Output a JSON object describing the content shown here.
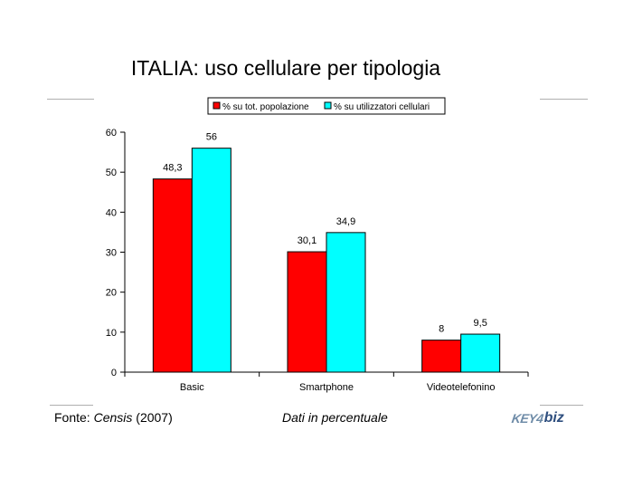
{
  "page": {
    "title": "ITALIA: uso cellulare per tipologia",
    "source_prefix": "Fonte: ",
    "source_name": "Censis",
    "source_year": " (2007)",
    "note": "Dati in percentuale",
    "logo_key": "KEY4",
    "logo_biz": "biz"
  },
  "chart_data": {
    "type": "bar",
    "title": "",
    "xlabel": "",
    "ylabel": "",
    "categories": [
      "Basic",
      "Smartphone",
      "Videotelefonino"
    ],
    "series": [
      {
        "name": "% su tot. popolazione",
        "values": [
          48.3,
          30.1,
          8
        ],
        "labels": [
          "48,3",
          "30,1",
          "8"
        ],
        "color": "#ff0000"
      },
      {
        "name": "% su utilizzatori cellulari",
        "values": [
          56,
          34.9,
          9.5
        ],
        "labels": [
          "56",
          "34,9",
          "9,5"
        ],
        "color": "#00ffff"
      }
    ],
    "ylim": [
      0,
      60
    ],
    "yticks": [
      0,
      10,
      20,
      30,
      40,
      50,
      60
    ],
    "grid": false,
    "legend_position": "top"
  }
}
